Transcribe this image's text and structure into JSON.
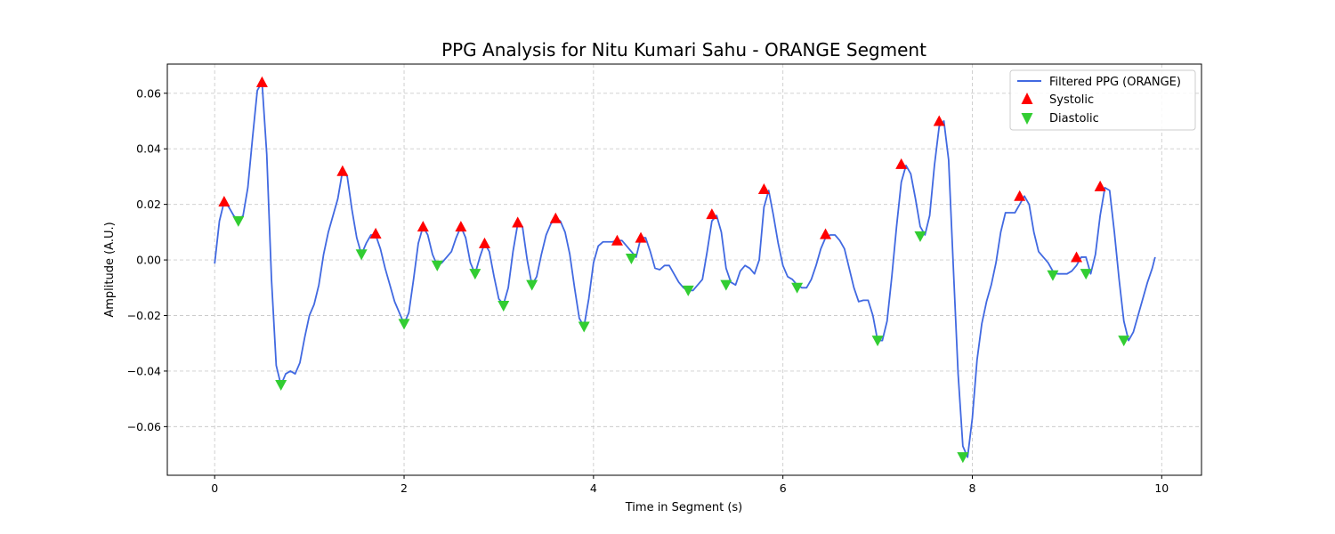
{
  "chart_data": {
    "type": "line",
    "title": "PPG Analysis for Nitu Kumari Sahu - ORANGE Segment",
    "xlabel": "Time in Segment (s)",
    "ylabel": "Amplitude (A.U.)",
    "xlim": [
      -0.5,
      10.42
    ],
    "ylim": [
      -0.0775,
      0.0705
    ],
    "xticks": [
      0,
      2,
      4,
      6,
      8,
      10
    ],
    "xtick_labels": [
      "0",
      "2",
      "4",
      "6",
      "8",
      "10"
    ],
    "yticks": [
      -0.06,
      -0.04,
      -0.02,
      0.0,
      0.02,
      0.04,
      0.06
    ],
    "ytick_labels": [
      "−0.06",
      "−0.04",
      "−0.02",
      "0.00",
      "0.02",
      "0.04",
      "0.06"
    ],
    "grid": true,
    "legend_position": "top-right",
    "colors": {
      "line": "#4169e1",
      "systolic": "#ff0000",
      "diastolic": "#32cd32"
    },
    "series": [
      {
        "name": "Filtered PPG (ORANGE)",
        "kind": "line",
        "x": [
          0.0,
          0.05,
          0.1,
          0.15,
          0.2,
          0.25,
          0.3,
          0.35,
          0.4,
          0.45,
          0.5,
          0.55,
          0.6,
          0.65,
          0.7,
          0.75,
          0.8,
          0.85,
          0.9,
          0.95,
          1.0,
          1.05,
          1.1,
          1.15,
          1.2,
          1.25,
          1.3,
          1.35,
          1.4,
          1.45,
          1.5,
          1.55,
          1.6,
          1.65,
          1.7,
          1.75,
          1.8,
          1.85,
          1.9,
          1.95,
          2.0,
          2.05,
          2.1,
          2.15,
          2.2,
          2.25,
          2.3,
          2.35,
          2.4,
          2.45,
          2.5,
          2.55,
          2.6,
          2.65,
          2.7,
          2.75,
          2.8,
          2.85,
          2.9,
          2.95,
          3.0,
          3.05,
          3.1,
          3.15,
          3.2,
          3.25,
          3.3,
          3.35,
          3.4,
          3.45,
          3.5,
          3.55,
          3.6,
          3.65,
          3.7,
          3.75,
          3.8,
          3.85,
          3.9,
          3.95,
          4.0,
          4.05,
          4.1,
          4.15,
          4.2,
          4.25,
          4.3,
          4.35,
          4.4,
          4.45,
          4.5,
          4.55,
          4.6,
          4.65,
          4.7,
          4.75,
          4.8,
          4.85,
          4.9,
          4.95,
          5.0,
          5.05,
          5.1,
          5.15,
          5.2,
          5.25,
          5.3,
          5.35,
          5.4,
          5.45,
          5.5,
          5.55,
          5.6,
          5.65,
          5.7,
          5.75,
          5.8,
          5.85,
          5.9,
          5.95,
          6.0,
          6.05,
          6.1,
          6.15,
          6.2,
          6.25,
          6.3,
          6.35,
          6.4,
          6.45,
          6.5,
          6.55,
          6.6,
          6.65,
          6.7,
          6.75,
          6.8,
          6.85,
          6.9,
          6.95,
          7.0,
          7.05,
          7.1,
          7.15,
          7.2,
          7.25,
          7.3,
          7.35,
          7.4,
          7.45,
          7.5,
          7.55,
          7.6,
          7.65,
          7.7,
          7.75,
          7.8,
          7.85,
          7.9,
          7.95,
          8.0,
          8.05,
          8.1,
          8.15,
          8.2,
          8.25,
          8.3,
          8.35,
          8.4,
          8.45,
          8.5,
          8.55,
          8.6,
          8.65,
          8.7,
          8.75,
          8.8,
          8.85,
          8.9,
          8.95,
          9.0,
          9.05,
          9.1,
          9.15,
          9.2,
          9.25,
          9.3,
          9.35,
          9.4,
          9.45,
          9.5,
          9.55,
          9.6,
          9.65,
          9.7,
          9.75,
          9.8,
          9.85,
          9.9,
          9.93
        ],
        "y": [
          -0.0013,
          0.014,
          0.021,
          0.019,
          0.016,
          0.014,
          0.016,
          0.026,
          0.044,
          0.061,
          0.064,
          0.038,
          -0.007,
          -0.038,
          -0.045,
          -0.041,
          -0.04,
          -0.041,
          -0.037,
          -0.028,
          -0.02,
          -0.016,
          -0.009,
          0.002,
          0.01,
          0.016,
          0.022,
          0.032,
          0.03,
          0.018,
          0.008,
          0.002,
          0.006,
          0.009,
          0.009,
          0.004,
          -0.003,
          -0.009,
          -0.015,
          -0.019,
          -0.023,
          -0.019,
          -0.007,
          0.006,
          0.012,
          0.009,
          0.002,
          -0.002,
          -0.001,
          0.001,
          0.003,
          0.008,
          0.012,
          0.008,
          -0.001,
          -0.005,
          0.001,
          0.006,
          0.003,
          -0.006,
          -0.014,
          -0.016,
          -0.01,
          0.003,
          0.013,
          0.012,
          0.0,
          -0.009,
          -0.006,
          0.002,
          0.009,
          0.013,
          0.015,
          0.014,
          0.01,
          0.002,
          -0.01,
          -0.021,
          -0.024,
          -0.014,
          -0.001,
          0.005,
          0.0065,
          0.0065,
          0.0065,
          0.007,
          0.007,
          0.005,
          0.003,
          0.001,
          0.008,
          0.008,
          0.003,
          -0.003,
          -0.0035,
          -0.002,
          -0.002,
          -0.005,
          -0.008,
          -0.01,
          -0.011,
          -0.011,
          -0.009,
          -0.007,
          0.003,
          0.014,
          0.016,
          0.01,
          -0.003,
          -0.008,
          -0.009,
          -0.004,
          -0.002,
          -0.003,
          -0.005,
          0.0,
          0.019,
          0.025,
          0.016,
          0.006,
          -0.002,
          -0.006,
          -0.007,
          -0.009,
          -0.01,
          -0.01,
          -0.007,
          -0.002,
          0.004,
          0.008,
          0.009,
          0.009,
          0.007,
          0.004,
          -0.003,
          -0.01,
          -0.015,
          -0.0145,
          -0.0145,
          -0.02,
          -0.029,
          -0.029,
          -0.022,
          -0.006,
          0.012,
          0.028,
          0.034,
          0.031,
          0.022,
          0.012,
          0.009,
          0.016,
          0.034,
          0.048,
          0.05,
          0.036,
          -0.003,
          -0.041,
          -0.067,
          -0.071,
          -0.057,
          -0.036,
          -0.023,
          -0.015,
          -0.009,
          -0.001,
          0.01,
          0.017,
          0.017,
          0.017,
          0.02,
          0.023,
          0.02,
          0.01,
          0.003,
          0.001,
          -0.001,
          -0.004,
          -0.005,
          -0.005,
          -0.005,
          -0.004,
          -0.002,
          0.001,
          0.001,
          -0.005,
          0.002,
          0.016,
          0.026,
          0.025,
          0.01,
          -0.007,
          -0.022,
          -0.029,
          -0.026,
          -0.02,
          -0.014,
          -0.008,
          -0.003,
          0.001
        ]
      },
      {
        "name": "Systolic",
        "kind": "marker-up",
        "x": [
          0.1,
          0.5,
          1.35,
          1.7,
          2.2,
          2.6,
          2.85,
          3.2,
          3.6,
          4.25,
          4.5,
          5.25,
          5.8,
          6.45,
          7.25,
          7.65,
          8.5,
          9.1,
          9.35
        ],
        "y": [
          0.021,
          0.064,
          0.032,
          0.0095,
          0.012,
          0.012,
          0.006,
          0.0135,
          0.015,
          0.007,
          0.008,
          0.0165,
          0.0255,
          0.0093,
          0.0345,
          0.05,
          0.023,
          0.001,
          0.0265
        ]
      },
      {
        "name": "Diastolic",
        "kind": "marker-down",
        "x": [
          0.25,
          0.7,
          1.55,
          2.0,
          2.35,
          2.75,
          3.05,
          3.35,
          3.9,
          4.4,
          5.0,
          5.4,
          6.15,
          7.0,
          7.45,
          7.9,
          8.85,
          9.2,
          9.6
        ],
        "y": [
          0.014,
          -0.045,
          0.002,
          -0.023,
          -0.002,
          -0.005,
          -0.0165,
          -0.009,
          -0.024,
          0.0005,
          -0.011,
          -0.009,
          -0.01,
          -0.029,
          0.0085,
          -0.071,
          -0.0055,
          -0.005,
          -0.029
        ]
      }
    ]
  }
}
